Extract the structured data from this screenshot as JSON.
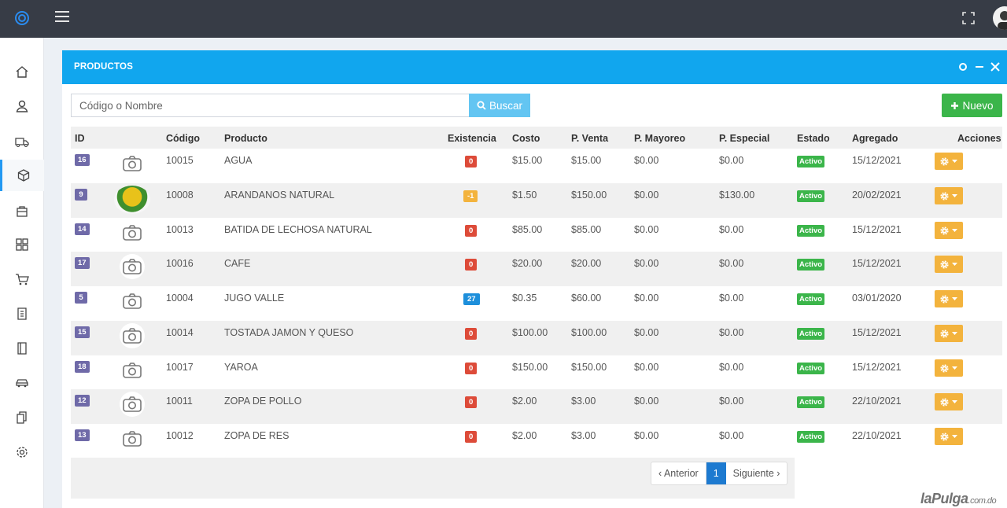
{
  "panel": {
    "title": "PRODUCTOS"
  },
  "search": {
    "placeholder": "Código o Nombre",
    "button_label": "Buscar"
  },
  "actions": {
    "new_label": "Nuevo"
  },
  "table": {
    "headers": [
      "ID",
      "Código",
      "Producto",
      "Existencia",
      "Costo",
      "P. Venta",
      "P. Mayoreo",
      "P. Especial",
      "Estado",
      "Agregado",
      "Acciones"
    ],
    "rows": [
      {
        "id": "16",
        "codigo": "10015",
        "producto": "AGUA",
        "existencia": "0",
        "costo": "$15.00",
        "venta": "$15.00",
        "mayoreo": "$0.00",
        "especial": "$0.00",
        "estado": "Activo",
        "agregado": "15/12/2021"
      },
      {
        "id": "9",
        "codigo": "10008",
        "producto": "ARANDANOS NATURAL",
        "existencia": "-1",
        "costo": "$1.50",
        "venta": "$150.00",
        "mayoreo": "$0.00",
        "especial": "$130.00",
        "estado": "Activo",
        "agregado": "20/02/2021"
      },
      {
        "id": "14",
        "codigo": "10013",
        "producto": "BATIDA DE LECHOSA NATURAL",
        "existencia": "0",
        "costo": "$85.00",
        "venta": "$85.00",
        "mayoreo": "$0.00",
        "especial": "$0.00",
        "estado": "Activo",
        "agregado": "15/12/2021"
      },
      {
        "id": "17",
        "codigo": "10016",
        "producto": "CAFE",
        "existencia": "0",
        "costo": "$20.00",
        "venta": "$20.00",
        "mayoreo": "$0.00",
        "especial": "$0.00",
        "estado": "Activo",
        "agregado": "15/12/2021"
      },
      {
        "id": "5",
        "codigo": "10004",
        "producto": "JUGO VALLE",
        "existencia": "27",
        "costo": "$0.35",
        "venta": "$60.00",
        "mayoreo": "$0.00",
        "especial": "$0.00",
        "estado": "Activo",
        "agregado": "03/01/2020"
      },
      {
        "id": "15",
        "codigo": "10014",
        "producto": "TOSTADA JAMON Y QUESO",
        "existencia": "0",
        "costo": "$100.00",
        "venta": "$100.00",
        "mayoreo": "$0.00",
        "especial": "$0.00",
        "estado": "Activo",
        "agregado": "15/12/2021"
      },
      {
        "id": "18",
        "codigo": "10017",
        "producto": "YAROA",
        "existencia": "0",
        "costo": "$150.00",
        "venta": "$150.00",
        "mayoreo": "$0.00",
        "especial": "$0.00",
        "estado": "Activo",
        "agregado": "15/12/2021"
      },
      {
        "id": "12",
        "codigo": "10011",
        "producto": "ZOPA DE POLLO",
        "existencia": "0",
        "costo": "$2.00",
        "venta": "$3.00",
        "mayoreo": "$0.00",
        "especial": "$0.00",
        "estado": "Activo",
        "agregado": "22/10/2021"
      },
      {
        "id": "13",
        "codigo": "10012",
        "producto": "ZOPA DE RES",
        "existencia": "0",
        "costo": "$2.00",
        "venta": "$3.00",
        "mayoreo": "$0.00",
        "especial": "$0.00",
        "estado": "Activo",
        "agregado": "22/10/2021"
      }
    ]
  },
  "pagination": {
    "prev_label": "‹ Anterior",
    "current_page": "1",
    "next_label": "Siguiente ›"
  },
  "watermark": {
    "brand": "laPulga",
    "domain": ".com.do"
  },
  "colors": {
    "header": "#373c46",
    "panel_head": "#11a6ee",
    "success": "#3bb54a",
    "warning": "#f3b33d",
    "danger": "#dd4b39",
    "info": "#1d8fdb",
    "id_badge": "#6f6aa8"
  }
}
